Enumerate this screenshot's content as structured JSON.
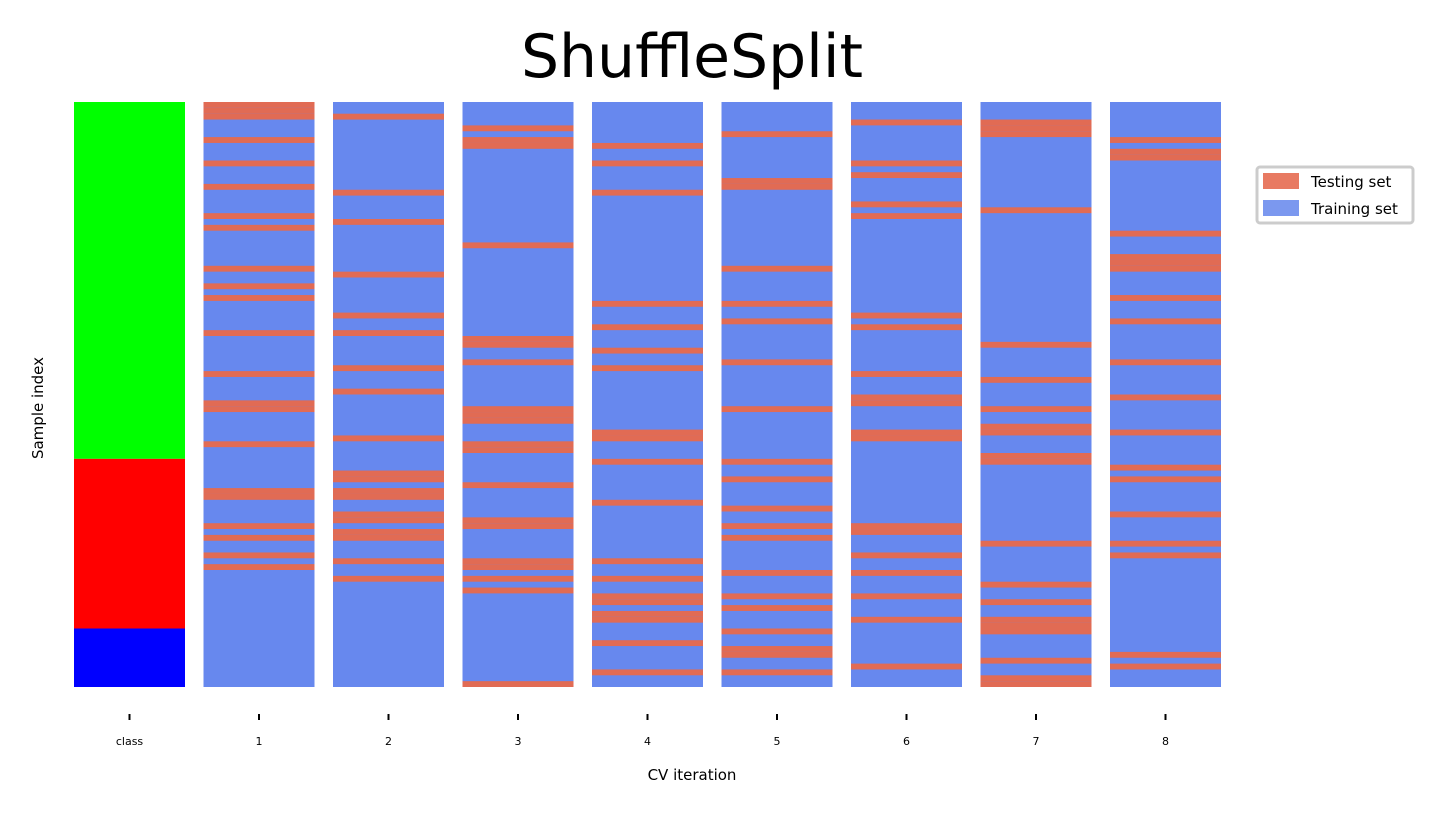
{
  "chart_data": {
    "type": "heatmap",
    "title": "ShuffleSplit",
    "xlabel": "CV iteration",
    "ylabel": "Sample index",
    "n_samples": 100,
    "class_tick_label": "class",
    "classes": [
      {
        "index_range": [
          0,
          61
        ],
        "color": "#00ff00"
      },
      {
        "index_range": [
          61,
          90
        ],
        "color": "#ff0000"
      },
      {
        "index_range": [
          90,
          100
        ],
        "color": "#0000ff"
      }
    ],
    "iterations": [
      {
        "label": "1",
        "test_indices": [
          0,
          1,
          2,
          6,
          10,
          14,
          19,
          21,
          28,
          31,
          33,
          39,
          46,
          51,
          52,
          58,
          66,
          67,
          72,
          74,
          77,
          79
        ]
      },
      {
        "label": "2",
        "test_indices": [
          2,
          15,
          20,
          29,
          36,
          39,
          45,
          49,
          57,
          63,
          64,
          66,
          67,
          70,
          71,
          73,
          74,
          78,
          81
        ]
      },
      {
        "label": "3",
        "test_indices": [
          4,
          6,
          7,
          24,
          40,
          41,
          44,
          52,
          53,
          54,
          58,
          59,
          65,
          71,
          72,
          78,
          79,
          81,
          83,
          99
        ]
      },
      {
        "label": "4",
        "test_indices": [
          7,
          10,
          15,
          34,
          38,
          42,
          45,
          56,
          57,
          61,
          68,
          78,
          81,
          84,
          85,
          87,
          88,
          92,
          97
        ]
      },
      {
        "label": "5",
        "test_indices": [
          5,
          13,
          14,
          28,
          34,
          37,
          44,
          52,
          61,
          64,
          69,
          72,
          74,
          80,
          84,
          86,
          90,
          93,
          94,
          97
        ]
      },
      {
        "label": "6",
        "test_indices": [
          3,
          10,
          12,
          17,
          19,
          36,
          38,
          46,
          50,
          51,
          56,
          57,
          72,
          73,
          77,
          80,
          84,
          88,
          96
        ]
      },
      {
        "label": "7",
        "test_indices": [
          3,
          4,
          5,
          18,
          41,
          47,
          52,
          55,
          56,
          60,
          61,
          75,
          82,
          85,
          88,
          89,
          90,
          95,
          98,
          99
        ]
      },
      {
        "label": "8",
        "test_indices": [
          6,
          8,
          9,
          22,
          26,
          27,
          28,
          33,
          37,
          44,
          50,
          56,
          62,
          64,
          70,
          75,
          77,
          94,
          96
        ]
      }
    ],
    "legend": {
      "position": "right",
      "entries": [
        {
          "label": "Testing set",
          "color": "#e87a62"
        },
        {
          "label": "Training set",
          "color": "#7b98ef"
        }
      ]
    },
    "colors": {
      "test_band": "#e16b54",
      "train_band": "#6788ee"
    },
    "grid": false
  }
}
